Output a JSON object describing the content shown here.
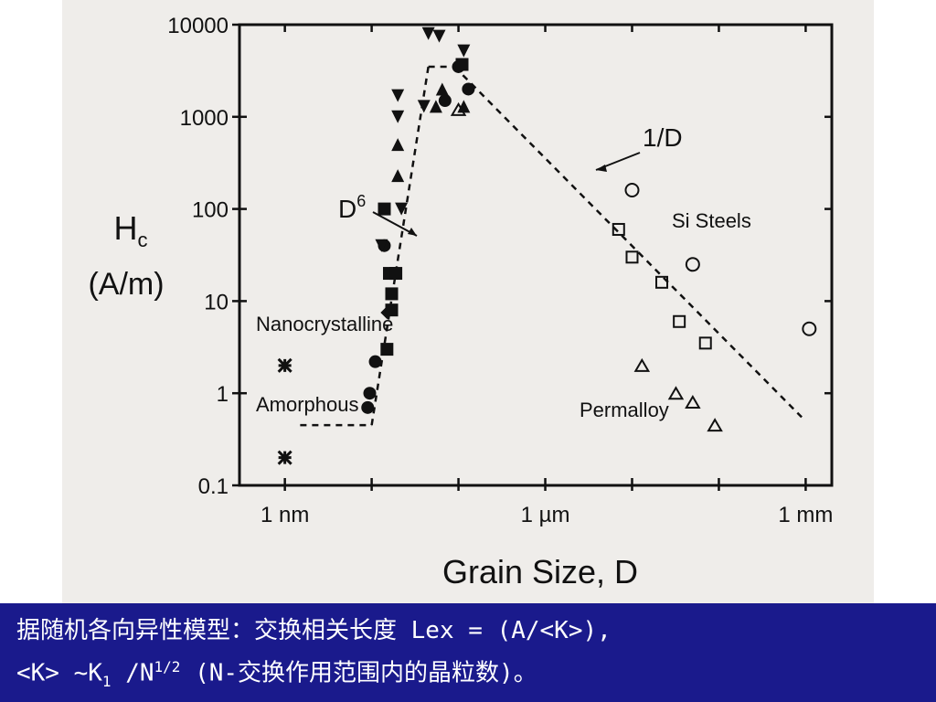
{
  "caption": {
    "line1": "据随机各向异性模型：交换相关长度 Lex = (A/<K>),",
    "line2_a": "<K> ~K",
    "line2_sub": "1",
    "line2_b": " /N",
    "line2_sup": "1/2",
    "line2_c": " (N-交换作用范围内的晶粒数)。"
  },
  "chart_data": {
    "type": "scatter",
    "xlabel": "Grain Size, D",
    "ylabel": "H",
    "ylabel_sub": "c",
    "ylabel_unit": "(A/m)",
    "x_scale": "log",
    "y_scale": "log",
    "x_unit": "nm",
    "xlim": [
      0.3,
      2000000
    ],
    "ylim": [
      0.1,
      10000
    ],
    "x_ticks": [
      {
        "value": 1,
        "label": "1 nm"
      },
      {
        "value": 1000,
        "label": "1 µm"
      },
      {
        "value": 1000000,
        "label": "1 mm"
      }
    ],
    "y_ticks": [
      {
        "value": 0.1,
        "label": "0.1"
      },
      {
        "value": 1,
        "label": "1"
      },
      {
        "value": 10,
        "label": "10"
      },
      {
        "value": 100,
        "label": "100"
      },
      {
        "value": 1000,
        "label": "1000"
      },
      {
        "value": 10000,
        "label": "10000"
      }
    ],
    "annotations": {
      "d6_label": "D",
      "d6_sup": "6",
      "one_over_d": "1/D",
      "nanocrystalline": "Nanocrystalline",
      "amorphous": "Amorphous",
      "si_steels": "Si Steels",
      "permalloy": "Permalloy"
    },
    "trend_lines": [
      {
        "name": "amorphous-plateau",
        "points": [
          [
            1.5,
            0.45
          ],
          [
            10,
            0.45
          ]
        ]
      },
      {
        "name": "d6-rise",
        "points": [
          [
            10,
            0.45
          ],
          [
            45,
            3500
          ]
        ]
      },
      {
        "name": "peak-plateau",
        "points": [
          [
            45,
            3500
          ],
          [
            90,
            3500
          ]
        ]
      },
      {
        "name": "one-over-d",
        "points": [
          [
            90,
            3500
          ],
          [
            900000,
            0.55
          ]
        ]
      }
    ],
    "series": [
      {
        "marker": "star",
        "points": [
          [
            1,
            2
          ],
          [
            1,
            0.2
          ]
        ]
      },
      {
        "marker": "diamond",
        "points": [
          [
            15,
            7.5
          ]
        ]
      },
      {
        "marker": "circle-filled",
        "points": [
          [
            9,
            0.7
          ],
          [
            9.5,
            1.0
          ],
          [
            11,
            2.2
          ],
          [
            14,
            40
          ],
          [
            70,
            1500
          ],
          [
            100,
            3500
          ],
          [
            130,
            2000
          ]
        ]
      },
      {
        "marker": "square-filled",
        "points": [
          [
            15,
            3
          ],
          [
            17,
            8
          ],
          [
            17,
            12
          ],
          [
            16,
            20
          ],
          [
            19,
            20
          ],
          [
            14,
            100
          ],
          [
            110,
            3700
          ]
        ]
      },
      {
        "marker": "triangle-down-filled",
        "points": [
          [
            45,
            8000
          ],
          [
            60,
            7500
          ],
          [
            20,
            1700
          ],
          [
            20,
            1000
          ],
          [
            22,
            100
          ],
          [
            13,
            40
          ],
          [
            40,
            1300
          ],
          [
            115,
            5200
          ]
        ]
      },
      {
        "marker": "triangle-up-filled",
        "points": [
          [
            20,
            230
          ],
          [
            20,
            500
          ],
          [
            55,
            1300
          ],
          [
            65,
            2000
          ],
          [
            115,
            1300
          ]
        ]
      },
      {
        "marker": "triangle-up-open",
        "points": [
          [
            100,
            1200
          ],
          [
            13000,
            2
          ],
          [
            32000,
            1
          ],
          [
            50000,
            0.8
          ],
          [
            90000,
            0.45
          ]
        ]
      },
      {
        "marker": "square-open",
        "points": [
          [
            7000,
            60
          ],
          [
            10000,
            30
          ],
          [
            22000,
            16
          ],
          [
            35000,
            6
          ],
          [
            70000,
            3.5
          ]
        ]
      },
      {
        "marker": "circle-open",
        "points": [
          [
            10000,
            160
          ],
          [
            50000,
            25
          ],
          [
            1100000,
            5
          ]
        ]
      }
    ]
  }
}
